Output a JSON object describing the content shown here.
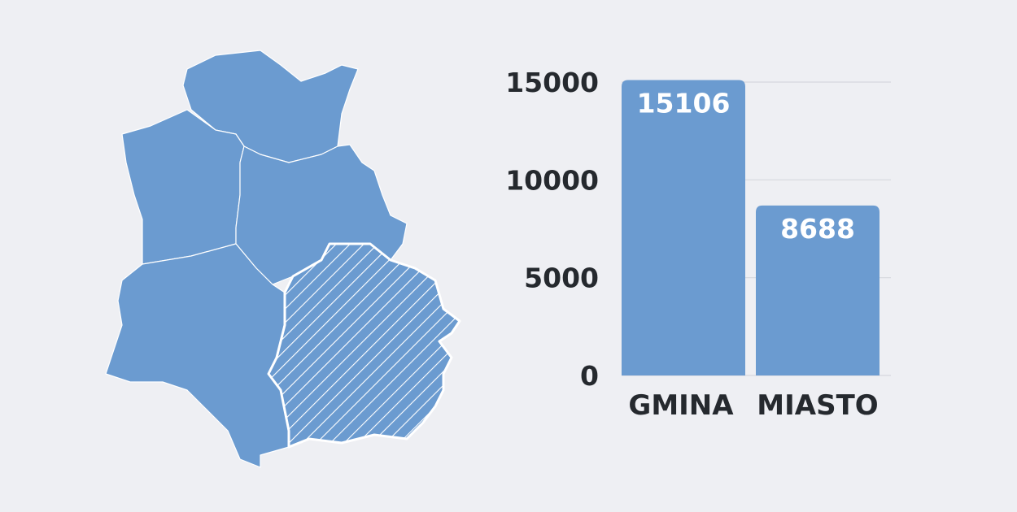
{
  "colors": {
    "background": "#eeeff3",
    "bar": "#6b9bd0",
    "map_region": "#6b9bd0",
    "region_border": "#ffffff",
    "text": "#25292e",
    "gridline": "#d6d8de"
  },
  "map": {
    "regions": 5,
    "highlighted_region_style": "hatched"
  },
  "chart_data": {
    "type": "bar",
    "categories": [
      "GMINA",
      "MIASTO"
    ],
    "values": [
      15106,
      8688
    ],
    "data_labels": [
      "15106",
      "8688"
    ],
    "yticks": [
      "0",
      "5000",
      "10000",
      "15000"
    ],
    "ytick_values": [
      0,
      5000,
      10000,
      15000
    ],
    "ylim": [
      0,
      15000
    ],
    "grid": true,
    "title": "",
    "xlabel": "",
    "ylabel": ""
  }
}
